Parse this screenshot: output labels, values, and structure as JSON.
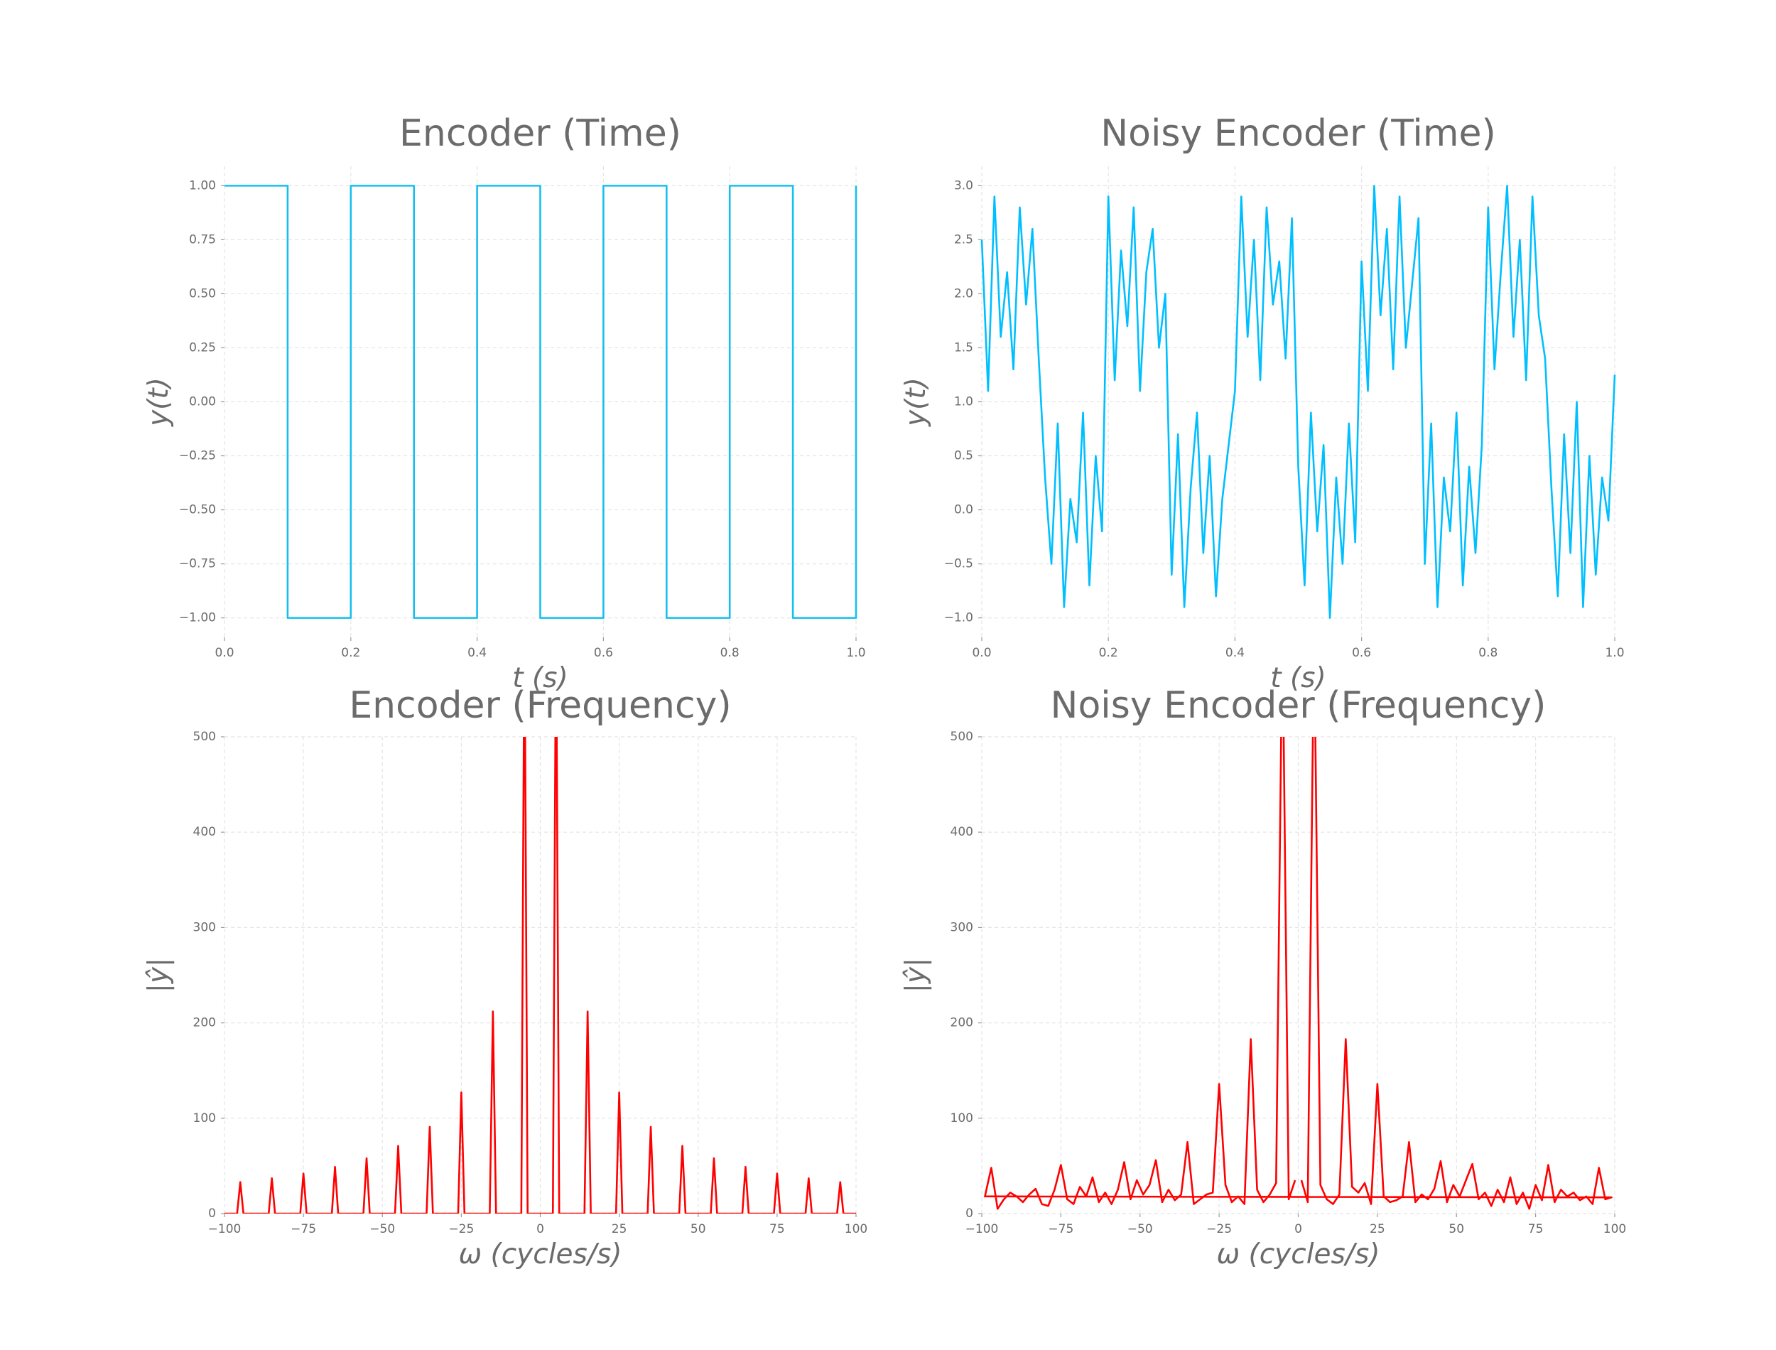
{
  "chart_data": [
    {
      "type": "line",
      "title": "Encoder (Time)",
      "x_label": "t (s)",
      "y_label": "y(t)",
      "color": "#17bfee",
      "grid": true,
      "x": [
        0,
        0.1,
        0.1,
        0.2,
        0.2,
        0.3,
        0.3,
        0.4,
        0.4,
        0.5,
        0.5,
        0.6,
        0.6,
        0.7,
        0.7,
        0.8,
        0.8,
        0.9,
        0.9,
        1.0,
        1.0
      ],
      "values": [
        1,
        1,
        -1,
        -1,
        1,
        1,
        -1,
        -1,
        1,
        1,
        -1,
        -1,
        1,
        1,
        -1,
        -1,
        1,
        1,
        -1,
        -1,
        1
      ],
      "xlim": [
        0,
        1
      ],
      "ylim": [
        -1.09,
        1.09
      ],
      "xticks": [
        {
          "value": 0,
          "label": "0.0"
        },
        0.2,
        0.4,
        0.6,
        0.8,
        {
          "value": 1,
          "label": "1.0"
        }
      ],
      "yticks": [
        {
          "value": 1,
          "label": "1.00"
        },
        {
          "value": 0.75,
          "label": "0.75"
        },
        {
          "value": 0.5,
          "label": "0.50"
        },
        {
          "value": 0.25,
          "label": "0.25"
        },
        {
          "value": 0,
          "label": "0.00"
        },
        {
          "value": -0.25,
          "label": "−0.25"
        },
        {
          "value": -0.5,
          "label": "−0.50"
        },
        {
          "value": -0.75,
          "label": "−0.75"
        },
        {
          "value": -1,
          "label": "−1.00"
        }
      ]
    },
    {
      "type": "line",
      "title": "Noisy Encoder (Time)",
      "x_label": "t (s)",
      "y_label": "y(t)",
      "color": "#00bfff",
      "grid": true,
      "x": [
        0,
        0.01,
        0.02,
        0.03,
        0.04,
        0.05,
        0.06,
        0.07,
        0.08,
        0.09,
        0.1,
        0.11,
        0.12,
        0.13,
        0.14,
        0.15,
        0.16,
        0.17,
        0.18,
        0.19,
        0.2,
        0.21,
        0.22,
        0.23,
        0.24,
        0.25,
        0.26,
        0.27,
        0.28,
        0.29,
        0.3,
        0.31,
        0.32,
        0.33,
        0.34,
        0.35,
        0.36,
        0.37,
        0.38,
        0.39,
        0.4,
        0.41,
        0.42,
        0.43,
        0.44,
        0.45,
        0.46,
        0.47,
        0.48,
        0.49,
        0.5,
        0.51,
        0.52,
        0.53,
        0.54,
        0.55,
        0.56,
        0.57,
        0.58,
        0.59,
        0.6,
        0.61,
        0.62,
        0.63,
        0.64,
        0.65,
        0.66,
        0.67,
        0.68,
        0.69,
        0.7,
        0.71,
        0.72,
        0.73,
        0.74,
        0.75,
        0.76,
        0.77,
        0.78,
        0.79,
        0.8,
        0.81,
        0.82,
        0.83,
        0.84,
        0.85,
        0.86,
        0.87,
        0.88,
        0.89,
        0.9,
        0.91,
        0.92,
        0.93,
        0.94,
        0.95,
        0.96,
        0.97,
        0.98,
        0.99,
        1.0
      ],
      "values": [
        2.5,
        1.1,
        2.9,
        1.6,
        2.2,
        1.3,
        2.8,
        1.9,
        2.6,
        1.4,
        0.3,
        -0.5,
        0.8,
        -0.9,
        0.1,
        -0.3,
        0.9,
        -0.7,
        0.5,
        -0.2,
        2.9,
        1.2,
        2.4,
        1.7,
        2.8,
        1.1,
        2.2,
        2.6,
        1.5,
        2.0,
        -0.6,
        0.7,
        -0.9,
        0.2,
        0.9,
        -0.4,
        0.5,
        -0.8,
        0.1,
        0.6,
        1.1,
        2.9,
        1.6,
        2.5,
        1.2,
        2.8,
        1.9,
        2.3,
        1.4,
        2.7,
        0.4,
        -0.7,
        0.9,
        -0.2,
        0.6,
        -1.0,
        0.3,
        -0.5,
        0.8,
        -0.3,
        2.3,
        1.1,
        3.0,
        1.8,
        2.6,
        1.3,
        2.9,
        1.5,
        2.1,
        2.7,
        -0.5,
        0.8,
        -0.9,
        0.3,
        -0.2,
        0.9,
        -0.7,
        0.4,
        -0.4,
        0.6,
        2.8,
        1.3,
        2.2,
        3.0,
        1.6,
        2.5,
        1.2,
        2.9,
        1.8,
        1.4,
        0.2,
        -0.8,
        0.7,
        -0.4,
        1.0,
        -0.9,
        0.5,
        -0.6,
        0.3,
        -0.1,
        1.25
      ],
      "xlim": [
        0,
        1
      ],
      "ylim": [
        -1.18,
        3.18
      ],
      "xticks": [
        {
          "value": 0,
          "label": "0.0"
        },
        0.2,
        0.4,
        0.6,
        0.8,
        {
          "value": 1,
          "label": "1.0"
        }
      ],
      "yticks": [
        {
          "value": 3,
          "label": "3.0"
        },
        2.5,
        {
          "value": 2,
          "label": "2.0"
        },
        1.5,
        {
          "value": 1,
          "label": "1.0"
        },
        0.5,
        {
          "value": 0,
          "label": "0.0"
        },
        {
          "value": -0.5,
          "label": "−0.5"
        },
        {
          "value": -1,
          "label": "−1.0"
        }
      ]
    },
    {
      "type": "line",
      "title": "Encoder (Frequency)",
      "x_label": "ω (cycles/s)",
      "y_label": "|ŷ|",
      "color": "#ff0000",
      "grid": true,
      "x": [
        -100,
        -96,
        -95,
        -94,
        -86,
        -85,
        -84,
        -76,
        -75,
        -74,
        -66,
        -65,
        -64,
        -56,
        -55,
        -54,
        -46,
        -45,
        -44,
        -36,
        -35,
        -34,
        -26,
        -25,
        -24,
        -16,
        -15,
        -14,
        -6,
        -5,
        -4,
        4,
        5,
        6,
        14,
        15,
        16,
        24,
        25,
        26,
        34,
        35,
        36,
        44,
        45,
        46,
        54,
        55,
        56,
        64,
        65,
        66,
        74,
        75,
        76,
        84,
        85,
        86,
        94,
        95,
        96,
        100
      ],
      "values": [
        0,
        0,
        33,
        0,
        0,
        37,
        0,
        0,
        42,
        0,
        0,
        49,
        0,
        0,
        58,
        0,
        0,
        71,
        0,
        0,
        91,
        0,
        0,
        127,
        0,
        0,
        212,
        0,
        0,
        637,
        0,
        0,
        637,
        0,
        0,
        212,
        0,
        0,
        127,
        0,
        0,
        91,
        0,
        0,
        71,
        0,
        0,
        58,
        0,
        0,
        49,
        0,
        0,
        42,
        0,
        0,
        37,
        0,
        0,
        33,
        0,
        0
      ],
      "xlim": [
        -100,
        100
      ],
      "ylim": [
        0,
        500
      ],
      "xticks": [
        {
          "value": -100,
          "label": "−100"
        },
        {
          "value": -75,
          "label": "−75"
        },
        {
          "value": -50,
          "label": "−50"
        },
        {
          "value": -25,
          "label": "−25"
        },
        0,
        25,
        50,
        75,
        100
      ],
      "yticks": [
        0,
        100,
        200,
        300,
        400,
        500
      ]
    },
    {
      "type": "line",
      "title": "Noisy Encoder (Frequency)",
      "x_label": "ω (cycles/s)",
      "y_label": "|ŷ|",
      "color": "#ff0000",
      "grid": true,
      "x": [
        1,
        3,
        5,
        7,
        9,
        11,
        13,
        15,
        17,
        19,
        21,
        23,
        25,
        27,
        29,
        31,
        33,
        35,
        37,
        39,
        41,
        43,
        45,
        47,
        49,
        51,
        53,
        55,
        57,
        59,
        61,
        63,
        65,
        67,
        69,
        71,
        73,
        75,
        77,
        79,
        81,
        83,
        85,
        87,
        89,
        91,
        93,
        95,
        97,
        99,
        -99,
        -97,
        -95,
        -93,
        -91,
        -89,
        -87,
        -85,
        -83,
        -81,
        -79,
        -77,
        -75,
        -73,
        -71,
        -69,
        -67,
        -65,
        -63,
        -61,
        -59,
        -57,
        -55,
        -53,
        -51,
        -49,
        -47,
        -45,
        -43,
        -41,
        -39,
        -37,
        -35,
        -33,
        -31,
        -29,
        -27,
        -25,
        -23,
        -21,
        -19,
        -17,
        -15,
        -13,
        -11,
        -9,
        -7,
        -5,
        -3,
        -1
      ],
      "values": [
        35,
        12,
        620,
        30,
        15,
        10,
        20,
        183,
        28,
        22,
        32,
        10,
        136,
        18,
        12,
        14,
        18,
        75,
        12,
        20,
        15,
        26,
        55,
        12,
        30,
        18,
        35,
        52,
        15,
        22,
        8,
        25,
        12,
        38,
        10,
        22,
        5,
        30,
        14,
        51,
        12,
        25,
        18,
        22,
        14,
        18,
        10,
        48,
        15,
        17,
        18,
        48,
        5,
        15,
        22,
        18,
        12,
        20,
        26,
        10,
        8,
        25,
        51,
        15,
        10,
        28,
        18,
        38,
        12,
        22,
        10,
        25,
        54,
        15,
        35,
        20,
        30,
        56,
        12,
        25,
        14,
        20,
        75,
        10,
        15,
        20,
        22,
        136,
        30,
        12,
        18,
        10,
        183,
        25,
        12,
        20,
        32,
        620,
        15,
        35
      ],
      "xlim": [
        -100,
        100
      ],
      "ylim": [
        0,
        500
      ],
      "xticks": [
        {
          "value": -100,
          "label": "−100"
        },
        {
          "value": -75,
          "label": "−75"
        },
        {
          "value": -50,
          "label": "−50"
        },
        {
          "value": -25,
          "label": "−25"
        },
        0,
        25,
        50,
        75,
        100
      ],
      "yticks": [
        0,
        100,
        200,
        300,
        400,
        500
      ]
    }
  ]
}
